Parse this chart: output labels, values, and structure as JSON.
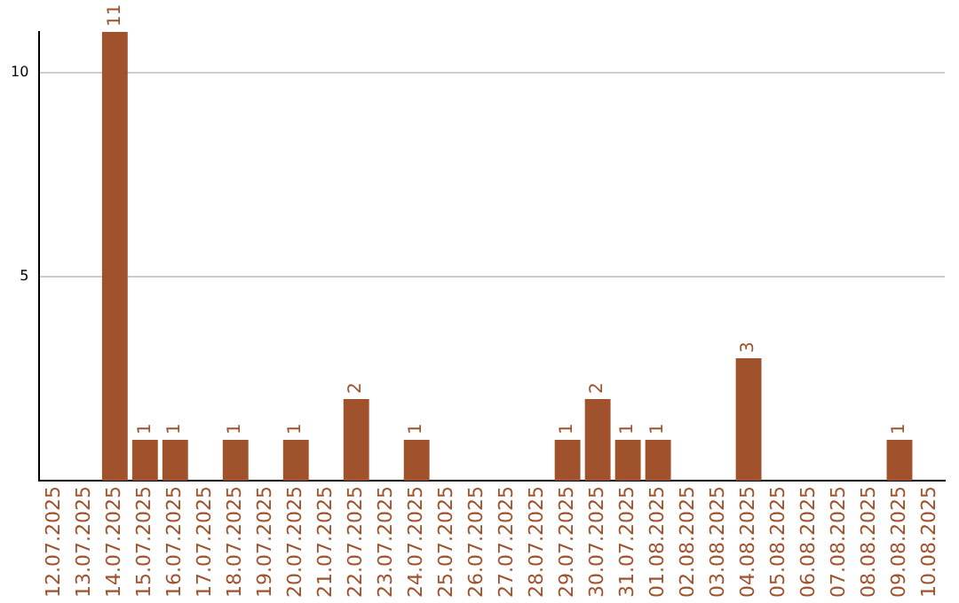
{
  "chart_data": {
    "type": "bar",
    "categories": [
      "12.07.2025",
      "13.07.2025",
      "14.07.2025",
      "15.07.2025",
      "16.07.2025",
      "17.07.2025",
      "18.07.2025",
      "19.07.2025",
      "20.07.2025",
      "21.07.2025",
      "22.07.2025",
      "23.07.2025",
      "24.07.2025",
      "25.07.2025",
      "26.07.2025",
      "27.07.2025",
      "28.07.2025",
      "29.07.2025",
      "30.07.2025",
      "31.07.2025",
      "01.08.2025",
      "02.08.2025",
      "03.08.2025",
      "04.08.2025",
      "05.08.2025",
      "06.08.2025",
      "07.08.2025",
      "08.08.2025",
      "09.08.2025",
      "10.08.2025"
    ],
    "values": [
      0,
      0,
      11,
      1,
      1,
      0,
      1,
      0,
      1,
      0,
      2,
      0,
      1,
      0,
      0,
      0,
      0,
      1,
      2,
      1,
      1,
      0,
      0,
      3,
      0,
      0,
      0,
      0,
      1,
      0
    ],
    "value_labels": [
      null,
      null,
      "11",
      "1",
      "1",
      null,
      "1",
      null,
      "1",
      null,
      "2",
      null,
      "1",
      null,
      null,
      null,
      null,
      "1",
      "2",
      "1",
      "1",
      null,
      null,
      "3",
      null,
      null,
      null,
      null,
      "1",
      null
    ],
    "color": "#a0522d",
    "ylim": [
      0,
      11
    ],
    "yticks": [
      5,
      10
    ],
    "grid": "y"
  }
}
